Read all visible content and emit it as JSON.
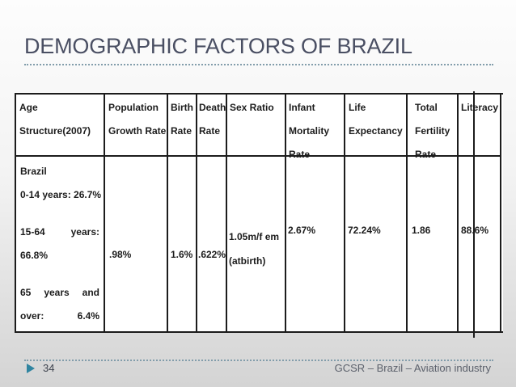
{
  "slide": {
    "title": "DEMOGRAPHIC FACTORS OF BRAZIL",
    "page_number": "34",
    "footer_text": "GCSR – Brazil – Aviation industry"
  },
  "colors": {
    "title_text": "#4a4f63",
    "accent_teal": "#2f84a0",
    "dotted_rule": "#829dab",
    "table_border": "#1c1c1c",
    "table_text": "#1c1c1c",
    "footer_text": "#5c616c",
    "background_top": "#fdfdfd",
    "background_bottom": "#d4d4d4"
  },
  "table": {
    "headers": [
      {
        "id": "age-structure",
        "lines": [
          "Age",
          "Structure(2007)"
        ]
      },
      {
        "id": "population-growth",
        "lines": [
          "Population",
          "Growth Rate"
        ]
      },
      {
        "id": "birth-rate",
        "lines": [
          "Birth",
          "Rate"
        ]
      },
      {
        "id": "death-rate",
        "lines": [
          "Death",
          "Rate"
        ]
      },
      {
        "id": "sex-ratio",
        "lines": [
          "Sex Ratio"
        ]
      },
      {
        "id": "infant-mortality",
        "lines": [
          "Infant",
          "Mortality",
          "Rate"
        ]
      },
      {
        "id": "life-expectancy",
        "lines": [
          "Life",
          "Expectancy"
        ]
      },
      {
        "id": "total-fertility",
        "lines": [
          "Total",
          "Fertility",
          "Rate"
        ]
      },
      {
        "id": "literacy",
        "lines": [
          "Literacy"
        ]
      }
    ],
    "row": {
      "country": "Brazil",
      "age_0_14": "0-14 years: 26.7%",
      "age_15_64_w1": "15-64",
      "age_15_64_w2": "years:",
      "age_15_64_value": "66.8%",
      "age_65_w1": "65",
      "age_65_w2": "years",
      "age_65_w3": "and",
      "age_65_w4": "over:",
      "age_65_value": "6.4%",
      "population_growth_rate": ".98%",
      "birth_rate": "1.6%",
      "death_rate": ".622%",
      "sex_ratio_line1": "1.05m/f em",
      "sex_ratio_line2": "(atbirth)",
      "infant_mortality_rate": "2.67%",
      "life_expectancy": "72.24%",
      "total_fertility_rate": "1.86",
      "literacy": "88.6%"
    }
  }
}
